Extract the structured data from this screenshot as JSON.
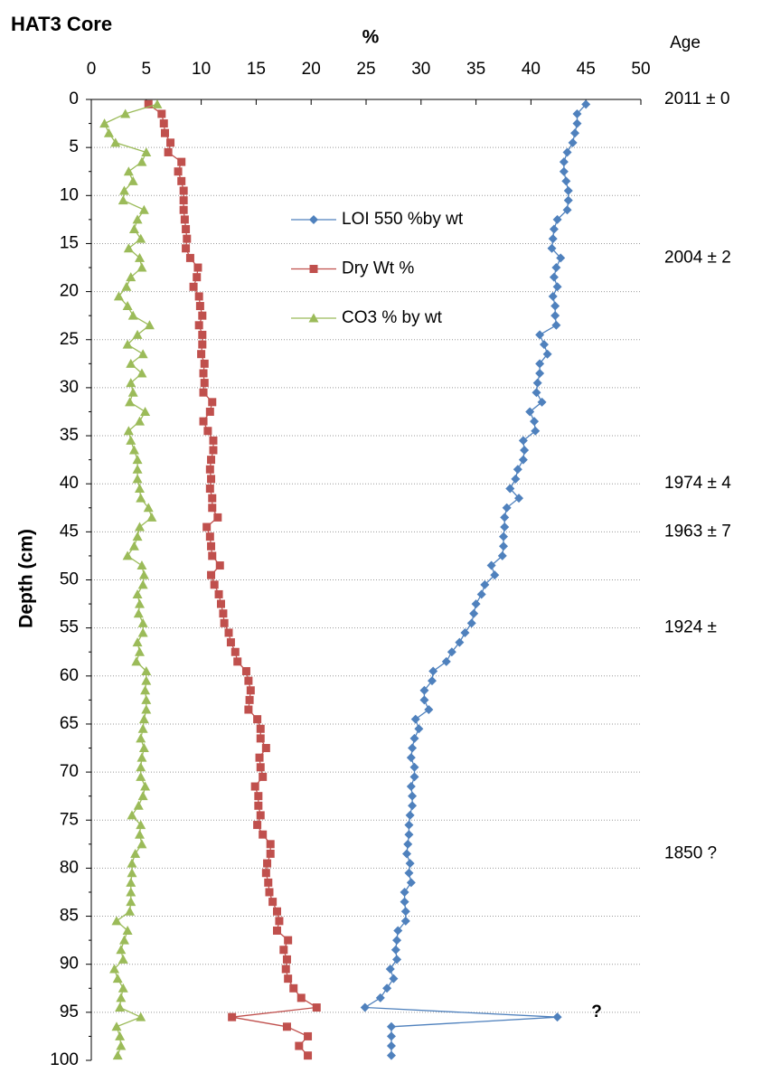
{
  "chart_data": {
    "type": "line",
    "orientation": "depth-profile",
    "title": "HAT3 Core",
    "xlabel": "%",
    "ylabel": "Depth (cm)",
    "xlim": [
      0,
      50
    ],
    "xticks": [
      0,
      5,
      10,
      15,
      20,
      25,
      30,
      35,
      40,
      45,
      50
    ],
    "ylim": [
      0,
      100
    ],
    "yticks": [
      0,
      5,
      10,
      15,
      20,
      25,
      30,
      35,
      40,
      45,
      50,
      55,
      60,
      65,
      70,
      75,
      80,
      85,
      90,
      95,
      100
    ],
    "y_inverted": true,
    "grid": true,
    "legend": "top-center",
    "y": [
      0.5,
      1.5,
      2.5,
      3.5,
      4.5,
      5.5,
      6.5,
      7.5,
      8.5,
      9.5,
      10.5,
      11.5,
      12.5,
      13.5,
      14.5,
      15.5,
      16.5,
      17.5,
      18.5,
      19.5,
      20.5,
      21.5,
      22.5,
      23.5,
      24.5,
      25.5,
      26.5,
      27.5,
      28.5,
      29.5,
      30.5,
      31.5,
      32.5,
      33.5,
      34.5,
      35.5,
      36.5,
      37.5,
      38.5,
      39.5,
      40.5,
      41.5,
      42.5,
      43.5,
      44.5,
      45.5,
      46.5,
      47.5,
      48.5,
      49.5,
      50.5,
      51.5,
      52.5,
      53.5,
      54.5,
      55.5,
      56.5,
      57.5,
      58.5,
      59.5,
      60.5,
      61.5,
      62.5,
      63.5,
      64.5,
      65.5,
      66.5,
      67.5,
      68.5,
      69.5,
      70.5,
      71.5,
      72.5,
      73.5,
      74.5,
      75.5,
      76.5,
      77.5,
      78.5,
      79.5,
      80.5,
      81.5,
      82.5,
      83.5,
      84.5,
      85.5,
      86.5,
      87.5,
      88.5,
      89.5,
      90.5,
      91.5,
      92.5,
      93.5,
      94.5,
      95.5,
      96.5,
      97.5,
      98.5,
      99.5
    ],
    "series": [
      {
        "name": "LOI 550 %by wt",
        "color": "#4f81bd",
        "marker": "diamond",
        "values": [
          45,
          44.2,
          44.2,
          44,
          43.8,
          43.3,
          43,
          43,
          43.2,
          43.4,
          43.4,
          43.3,
          42.4,
          42.1,
          42,
          41.9,
          42.7,
          42.3,
          42.1,
          42.4,
          42,
          42.2,
          42.2,
          42.3,
          40.8,
          41.2,
          41.5,
          40.8,
          40.8,
          40.6,
          40.5,
          41,
          39.9,
          40.3,
          40.4,
          39.3,
          39.4,
          39.3,
          38.8,
          38.6,
          38.1,
          38.9,
          37.8,
          37.6,
          37.6,
          37.5,
          37.5,
          37.4,
          36.4,
          36.7,
          35.8,
          35.5,
          35,
          34.8,
          34.6,
          34,
          33.5,
          32.8,
          32.3,
          31.1,
          31,
          30.3,
          30.3,
          30.7,
          29.5,
          29.8,
          29.4,
          29.2,
          29.1,
          29.4,
          29.4,
          29.1,
          29.2,
          29.2,
          29,
          28.9,
          28.9,
          28.8,
          28.7,
          29,
          28.9,
          29.1,
          28.5,
          28.5,
          28.6,
          28.6,
          27.9,
          27.8,
          27.7,
          27.8,
          27.2,
          27.5,
          26.9,
          26.3,
          24.9,
          42.4,
          27.3,
          27.3,
          27.3,
          27.3
        ]
      },
      {
        "name": "Dry Wt %",
        "color": "#c0504d",
        "marker": "square",
        "values": [
          5.2,
          6.4,
          6.6,
          6.7,
          7.2,
          7,
          8.2,
          7.9,
          8.2,
          8.4,
          8.4,
          8.4,
          8.5,
          8.6,
          8.7,
          8.6,
          9,
          9.7,
          9.6,
          9.3,
          9.8,
          9.9,
          10.1,
          9.8,
          10.1,
          10.1,
          10,
          10.3,
          10.2,
          10.3,
          10.2,
          11,
          10.8,
          10.2,
          10.6,
          11.1,
          11.1,
          10.9,
          10.8,
          10.9,
          10.8,
          11,
          11,
          11.5,
          10.5,
          10.8,
          10.9,
          11,
          11.7,
          10.9,
          11.2,
          11.6,
          11.8,
          12,
          12.1,
          12.5,
          12.7,
          13.1,
          13.3,
          14.1,
          14.3,
          14.5,
          14.4,
          14.3,
          15.1,
          15.4,
          15.4,
          15.9,
          15.3,
          15.4,
          15.6,
          14.9,
          15.2,
          15.2,
          15.4,
          15.1,
          15.6,
          16.3,
          16.3,
          16,
          15.9,
          16.1,
          16.2,
          16.5,
          16.9,
          17.1,
          16.9,
          17.9,
          17.5,
          17.8,
          17.7,
          17.9,
          18.4,
          19.1,
          20.5,
          12.8,
          17.8,
          19.7,
          18.9,
          19.7
        ]
      },
      {
        "name": "CO3 % by wt",
        "color": "#9bbb59",
        "marker": "triangle",
        "values": [
          6,
          3.1,
          1.2,
          1.6,
          2.2,
          5,
          4.6,
          3.4,
          3.8,
          3,
          2.9,
          4.8,
          4.2,
          3.9,
          4.5,
          3.4,
          4.4,
          4.6,
          3.6,
          3.2,
          2.5,
          3.3,
          3.8,
          5.3,
          4.2,
          3.3,
          4.7,
          3.6,
          4.6,
          3.6,
          3.8,
          3.5,
          4.9,
          4.4,
          3.4,
          3.6,
          3.9,
          4.2,
          4.2,
          4.2,
          4.4,
          4.5,
          5.2,
          5.5,
          4.4,
          4.2,
          3.9,
          3.3,
          4.6,
          4.8,
          4.7,
          4.2,
          4.4,
          4.3,
          4.7,
          4.7,
          4.2,
          4.4,
          4.1,
          5,
          5,
          4.9,
          5,
          5,
          4.8,
          4.7,
          4.5,
          4.8,
          4.6,
          4.5,
          4.5,
          4.9,
          4.7,
          4.3,
          3.7,
          4.5,
          4.4,
          4.6,
          4,
          3.7,
          3.7,
          3.6,
          3.6,
          3.6,
          3.5,
          2.3,
          3.3,
          3,
          2.7,
          2.9,
          2.1,
          2.4,
          2.9,
          2.7,
          2.6,
          4.5,
          2.3,
          2.6,
          2.7,
          2.4
        ]
      }
    ],
    "age_header": "Age",
    "age_color": "#2e75b6",
    "ages": [
      {
        "label": "2011 ± 0",
        "depth": 0
      },
      {
        "label": "2004 ± 2",
        "depth": 16.5
      },
      {
        "label": "1974 ± 4",
        "depth": 40
      },
      {
        "label": "1963 ± 7",
        "depth": 45
      },
      {
        "label": "1924 ±",
        "depth": 55
      },
      {
        "label": "1850 ?",
        "depth": 78.5
      }
    ],
    "annotations": [
      {
        "text": "?"
      }
    ]
  }
}
